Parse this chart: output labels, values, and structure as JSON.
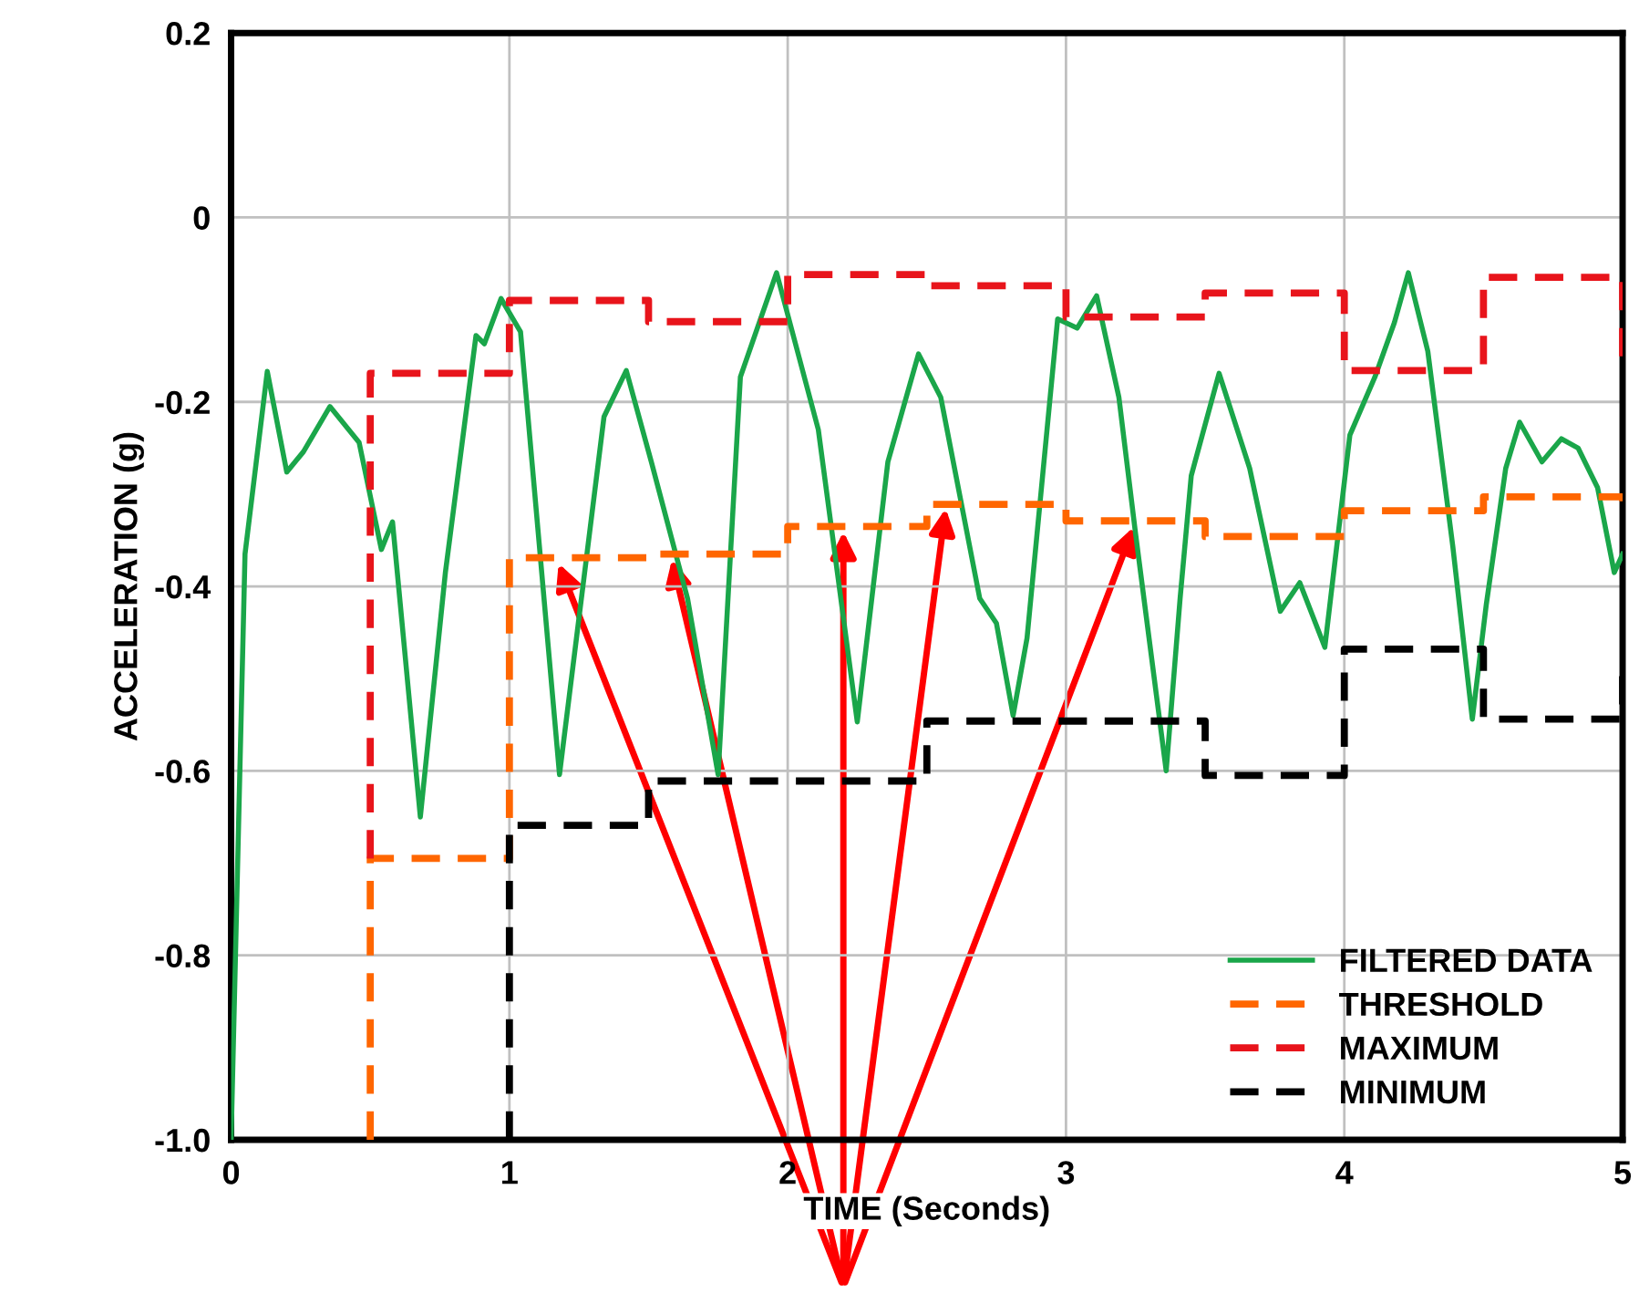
{
  "chart_data": {
    "type": "line",
    "xlabel": "TIME (Seconds)",
    "ylabel": "ACCELERATION (g)",
    "xlim": [
      0,
      5
    ],
    "ylim": [
      -1.0,
      0.2
    ],
    "xticks": [
      0,
      1,
      2,
      3,
      4,
      5
    ],
    "yticks": [
      {
        "value": 0.2,
        "label": "0.2"
      },
      0,
      {
        "value": -0.2,
        "label": "-0.2"
      },
      {
        "value": -0.4,
        "label": "-0.4"
      },
      {
        "value": -0.6,
        "label": "-0.6"
      },
      {
        "value": -0.8,
        "label": "-0.8"
      },
      {
        "value": -1.0,
        "label": "-1.0"
      }
    ],
    "grid": true,
    "legend": "bottom right",
    "series": [
      {
        "name": "FILTERED DATA",
        "color": "#1aa64a",
        "line_style": "solid",
        "x": [
          0,
          0.05,
          0.13,
          0.2,
          0.26,
          0.355,
          0.46,
          0.54,
          0.58,
          0.68,
          0.77,
          0.88,
          0.91,
          0.97,
          1.04,
          1.18,
          1.34,
          1.42,
          1.51,
          1.64,
          1.75,
          1.83,
          1.96,
          2.11,
          2.25,
          2.36,
          2.47,
          2.55,
          2.69,
          2.75,
          2.81,
          2.86,
          2.97,
          3.04,
          3.11,
          3.19,
          3.25,
          3.36,
          3.41,
          3.45,
          3.55,
          3.66,
          3.77,
          3.84,
          3.93,
          4.02,
          4.11,
          4.18,
          4.23,
          4.3,
          4.39,
          4.46,
          4.51,
          4.58,
          4.63,
          4.71,
          4.78,
          4.84,
          4.91,
          4.97,
          5.0
        ],
        "values": [
          -1.0,
          -0.365,
          -0.167,
          -0.276,
          -0.254,
          -0.205,
          -0.244,
          -0.36,
          -0.33,
          -0.65,
          -0.385,
          -0.128,
          -0.137,
          -0.088,
          -0.124,
          -0.604,
          -0.216,
          -0.166,
          -0.265,
          -0.413,
          -0.604,
          -0.173,
          -0.06,
          -0.23,
          -0.547,
          -0.265,
          -0.148,
          -0.195,
          -0.413,
          -0.44,
          -0.54,
          -0.456,
          -0.11,
          -0.12,
          -0.085,
          -0.195,
          -0.343,
          -0.6,
          -0.413,
          -0.28,
          -0.169,
          -0.272,
          -0.427,
          -0.396,
          -0.466,
          -0.236,
          -0.173,
          -0.114,
          -0.06,
          -0.145,
          -0.357,
          -0.544,
          -0.42,
          -0.272,
          -0.222,
          -0.265,
          -0.24,
          -0.25,
          -0.293,
          -0.385,
          -0.365
        ]
      },
      {
        "name": "THRESHOLD",
        "color": "#ff6600",
        "line_style": "dashed",
        "x": [
          0.5,
          0.5,
          1.0,
          1.0,
          1.5,
          1.5,
          2.0,
          2.0,
          2.5,
          2.5,
          3.0,
          3.0,
          3.5,
          3.5,
          4.0,
          4.0,
          4.5,
          4.5,
          5.0,
          5.0
        ],
        "values": [
          -1.0,
          -0.695,
          -0.695,
          -0.369,
          -0.369,
          -0.365,
          -0.365,
          -0.335,
          -0.335,
          -0.311,
          -0.311,
          -0.329,
          -0.329,
          -0.346,
          -0.346,
          -0.318,
          -0.318,
          -0.303,
          -0.303,
          -0.315
        ]
      },
      {
        "name": "MAXIMUM",
        "color": "#e8141b",
        "line_style": "dashed",
        "x": [
          0.5,
          0.5,
          1.0,
          1.0,
          1.5,
          1.5,
          2.0,
          2.0,
          2.5,
          2.5,
          3.0,
          3.0,
          3.5,
          3.5,
          4.0,
          4.0,
          4.5,
          4.5,
          5.0,
          5.0
        ],
        "values": [
          -0.695,
          -0.169,
          -0.169,
          -0.09,
          -0.09,
          -0.113,
          -0.113,
          -0.062,
          -0.062,
          -0.074,
          -0.074,
          -0.108,
          -0.108,
          -0.082,
          -0.082,
          -0.166,
          -0.166,
          -0.065,
          -0.065,
          -0.16
        ]
      },
      {
        "name": "MINIMUM",
        "color": "#000000",
        "line_style": "dashed",
        "x": [
          1.0,
          1.0,
          1.5,
          1.5,
          2.0,
          2.0,
          2.5,
          2.5,
          3.0,
          3.0,
          3.5,
          3.5,
          4.0,
          4.0,
          4.5,
          4.5,
          5.0,
          5.0
        ],
        "values": [
          -1.0,
          -0.659,
          -0.659,
          -0.611,
          -0.611,
          -0.611,
          -0.611,
          -0.546,
          -0.546,
          -0.546,
          -0.546,
          -0.605,
          -0.605,
          -0.468,
          -0.468,
          -0.544,
          -0.544,
          -0.49
        ]
      }
    ]
  }
}
